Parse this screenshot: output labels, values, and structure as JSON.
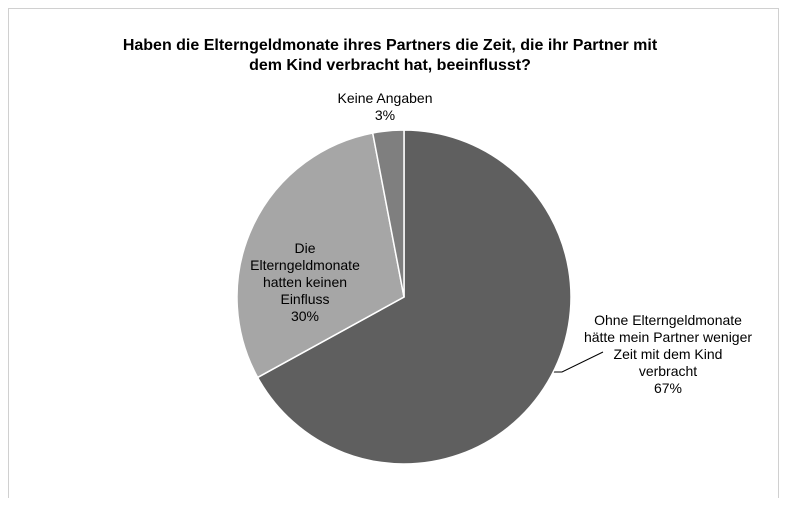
{
  "chart_data": {
    "type": "pie",
    "title": "Haben die Elterngeldmonate ihres Partners die Zeit, die ihr Partner mit dem Kind verbracht hat, beeinflusst?",
    "categories": [
      "Ohne Elterngeldmonate hätte mein Partner weniger Zeit mit dem Kind verbracht",
      "Die Elterngeldmonate hatten keinen Einfluss",
      "Keine Angaben"
    ],
    "values": [
      67,
      30,
      3
    ],
    "value_labels": [
      "67%",
      "30%",
      "3%"
    ],
    "colors": [
      "#5f5f5f",
      "#a6a6a6",
      "#7f7f7f"
    ]
  }
}
